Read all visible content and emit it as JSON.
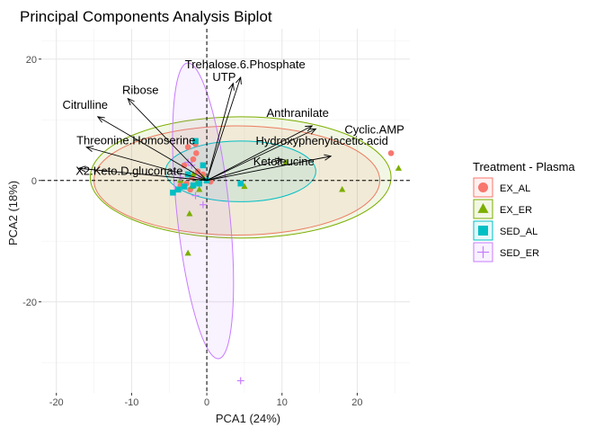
{
  "chart_data": {
    "type": "scatter",
    "title": "Principal Components Analysis Biplot",
    "xlabel": "PCA1 (24%)",
    "ylabel": "PCA2 (18%)",
    "xlim": [
      -22,
      27
    ],
    "ylim": [
      -35,
      25
    ],
    "x_ticks": [
      -20,
      -10,
      0,
      10,
      20
    ],
    "x_tick_labels": [
      "-20",
      "-10",
      "0",
      "10",
      "20"
    ],
    "y_ticks": [
      -20,
      0,
      20
    ],
    "y_tick_labels": [
      "-20",
      "0",
      "20"
    ],
    "grid": true,
    "reference_lines": {
      "x": 0,
      "y": 0,
      "style": "dashed"
    },
    "legend": {
      "title": "Treatment - Plasma",
      "placement": "right",
      "entries": [
        {
          "label": "EX_AL",
          "color": "#F8766D",
          "shape": "circle"
        },
        {
          "label": "EX_ER",
          "color": "#7CAE00",
          "shape": "triangle"
        },
        {
          "label": "SED_AL",
          "color": "#00BFC4",
          "shape": "square"
        },
        {
          "label": "SED_ER",
          "color": "#C77CFF",
          "shape": "plus"
        }
      ]
    },
    "series": [
      {
        "name": "EX_AL",
        "points": [
          [
            24.5,
            4.5
          ],
          [
            -2.5,
            5.5
          ],
          [
            -1.8,
            3.5
          ],
          [
            -1.5,
            6.0
          ],
          [
            -1.2,
            1.5
          ],
          [
            -2.0,
            0.5
          ],
          [
            -1.0,
            -0.5
          ],
          [
            -3.5,
            -0.8
          ],
          [
            -2.2,
            -1.5
          ],
          [
            -0.5,
            1.0
          ],
          [
            0.5,
            -0.2
          ],
          [
            -3.0,
            2.5
          ],
          [
            -2.7,
            -0.5
          ],
          [
            -1.4,
            4.5
          ]
        ],
        "ellipse": {
          "cx": 4.0,
          "cy": 0.0,
          "rx": 19.0,
          "ry": 9.0,
          "angle": 0
        }
      },
      {
        "name": "EX_ER",
        "points": [
          [
            25.5,
            2.0
          ],
          [
            18.0,
            -1.5
          ],
          [
            -2.5,
            -12.0
          ],
          [
            -2.3,
            -5.5
          ],
          [
            -2.0,
            -1.0
          ],
          [
            -1.3,
            -0.3
          ],
          [
            -0.5,
            0.5
          ],
          [
            -1.8,
            1.0
          ],
          [
            10.5,
            3.0
          ],
          [
            5.0,
            -1.0
          ],
          [
            -1.0,
            -1.5
          ],
          [
            -3.5,
            0.0
          ]
        ],
        "ellipse": {
          "cx": 4.5,
          "cy": 0.5,
          "rx": 20.0,
          "ry": 10.0,
          "angle": 0
        }
      },
      {
        "name": "SED_AL",
        "points": [
          [
            -1.5,
            6.5
          ],
          [
            -4.5,
            -2.0
          ],
          [
            4.5,
            -0.5
          ],
          [
            -1.0,
            -0.5
          ],
          [
            0.0,
            0.0
          ],
          [
            -3.0,
            -1.0
          ],
          [
            -2.5,
            1.0
          ],
          [
            -3.8,
            -1.5
          ],
          [
            -0.5,
            2.5
          ],
          [
            -1.8,
            -0.8
          ]
        ],
        "ellipse": {
          "cx": 4.5,
          "cy": 1.5,
          "rx": 10.0,
          "ry": 5.0,
          "angle": 0
        }
      },
      {
        "name": "SED_ER",
        "points": [
          [
            4.5,
            -33.0
          ],
          [
            -0.5,
            -4.0
          ],
          [
            -1.5,
            -2.5
          ],
          [
            -2.5,
            3.0
          ],
          [
            -3.5,
            0.5
          ],
          [
            -1.0,
            0.5
          ],
          [
            -2.0,
            2.5
          ]
        ],
        "ellipse": {
          "cx": -0.5,
          "cy": -5.0,
          "rx": 3.5,
          "ry": 24.5,
          "angle": -6
        }
      }
    ],
    "loadings": [
      {
        "label": "Trehalose.6.Phosphate",
        "x": 4.5,
        "y": 17.0
      },
      {
        "label": "UTP",
        "x": 3.5,
        "y": 16.0
      },
      {
        "label": "Ribose",
        "x": -10.5,
        "y": 13.5
      },
      {
        "label": "Citrulline",
        "x": -14.5,
        "y": 10.5
      },
      {
        "label": "Threonine.Homoserine",
        "x": -16.0,
        "y": 5.5
      },
      {
        "label": "X2.Keto.D.gluconate",
        "x": -17.0,
        "y": 2.0
      },
      {
        "label": "Anthranilate",
        "x": 14.0,
        "y": 9.0
      },
      {
        "label": "Cyclic.AMP",
        "x": 14.5,
        "y": 8.5
      },
      {
        "label": "Hydroxyphenylacetic.acid",
        "x": 16.5,
        "y": 4.0
      },
      {
        "label": "Ketoleucine",
        "x": 10.0,
        "y": 3.5
      }
    ]
  }
}
